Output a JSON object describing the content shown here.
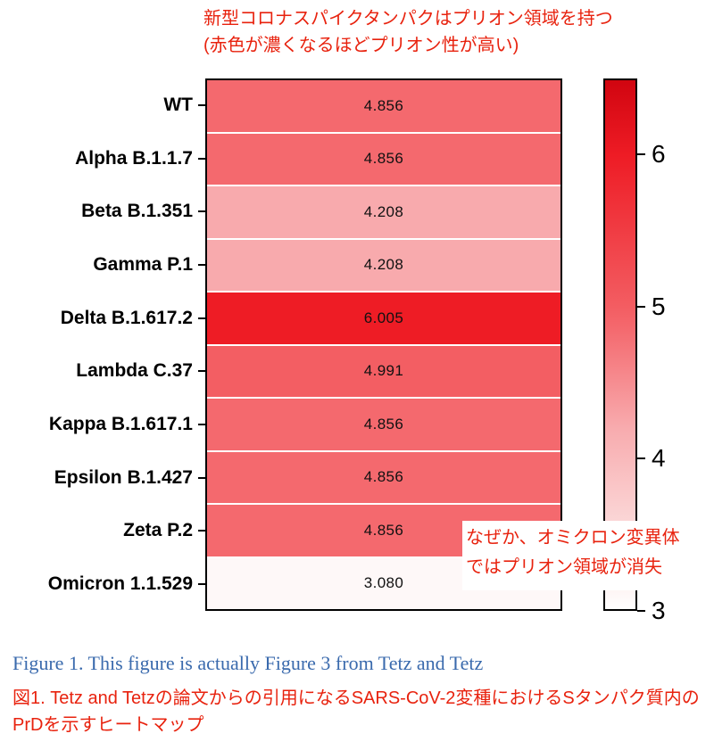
{
  "annotations": {
    "title_line1": "新型コロナスパイクタンパクはプリオン領域を持つ",
    "title_line2": "(赤色が濃くなるほどプリオン性が高い)",
    "omicron_note_line1": "なぜか、オミクロン変異体",
    "omicron_note_line2": "ではプリオン領域が消失"
  },
  "caption": {
    "english": "Figure 1. This figure is actually Figure 3 from Tetz and Tetz",
    "japanese": "図1. Tetz and Tetzの論文からの引用になるSARS-CoV-2変種におけるSタンパク質内のPrDを示すヒートマップ"
  },
  "colors": {
    "annotation_red": "#e8220e",
    "caption_blue": "#3a6aad",
    "cell_text": "#111111",
    "border": "#000000",
    "row_separator": "#ffffff"
  },
  "chart_data": {
    "type": "heatmap",
    "title": "",
    "categories": [
      "WT",
      "Alpha B.1.1.7",
      "Beta B.1.351",
      "Gamma P.1",
      "Delta B.1.617.2",
      "Lambda C.37",
      "Kappa B.1.617.1",
      "Epsilon B.1.427",
      "Zeta P.2",
      "Omicron 1.1.529"
    ],
    "values": [
      4.856,
      4.856,
      4.208,
      4.208,
      6.005,
      4.991,
      4.856,
      4.856,
      4.856,
      3.08
    ],
    "value_labels": [
      "4.856",
      "4.856",
      "4.208",
      "4.208",
      "6.005",
      "4.991",
      "4.856",
      "4.856",
      "4.856",
      "3.080"
    ],
    "colorbar": {
      "min": 3,
      "max": 6.5,
      "ticks": [
        6,
        5,
        4,
        3
      ]
    },
    "colormap_stops": [
      {
        "value": 3.0,
        "color": "#fffefe"
      },
      {
        "value": 3.3,
        "color": "#fce9e8"
      },
      {
        "value": 4.2,
        "color": "#f8abae"
      },
      {
        "value": 4.86,
        "color": "#f4696e"
      },
      {
        "value": 5.0,
        "color": "#f35d62"
      },
      {
        "value": 6.0,
        "color": "#ee1c25"
      },
      {
        "value": 6.5,
        "color": "#d10510"
      }
    ],
    "legend_position": "right",
    "grid": false
  }
}
